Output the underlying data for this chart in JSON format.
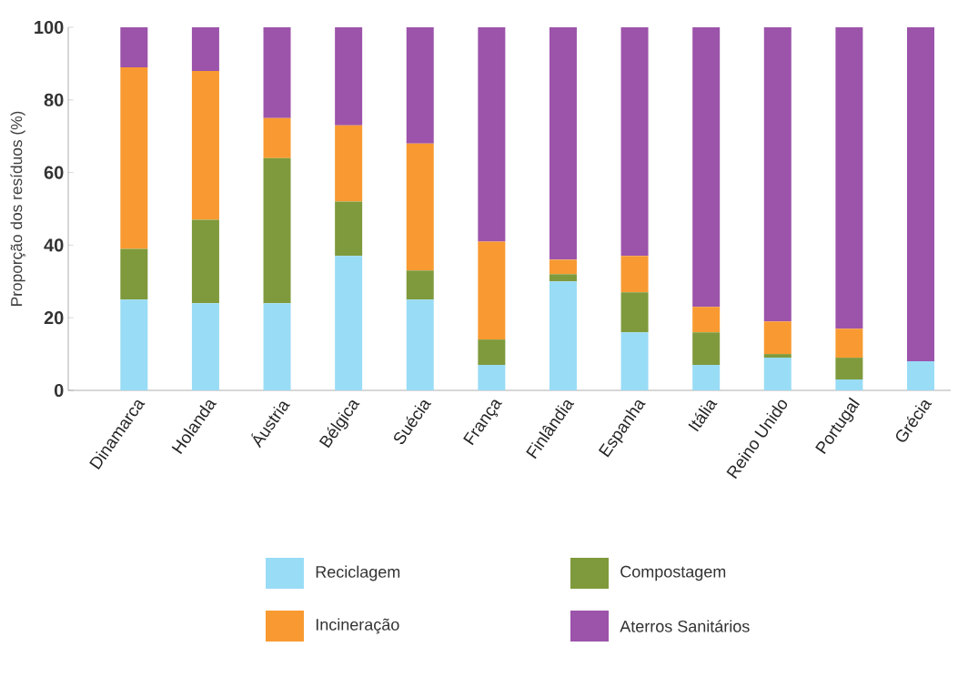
{
  "chart_data": {
    "type": "bar",
    "stacked": true,
    "ylabel": "Proporção dos resíduos (%)",
    "categories": [
      "Dinamarca",
      "Holanda",
      "Áustria",
      "Bélgica",
      "Suécia",
      "França",
      "Finlândia",
      "Espanha",
      "Itália",
      "Reino Unido",
      "Portugal",
      "Grécia"
    ],
    "series": [
      {
        "name": "Reciclagem",
        "color": "#99dcf6",
        "values": [
          25,
          24,
          24,
          37,
          25,
          7,
          30,
          16,
          7,
          9,
          3,
          8
        ]
      },
      {
        "name": "Compostagem",
        "color": "#7f9a3c",
        "values": [
          14,
          23,
          40,
          15,
          8,
          7,
          2,
          11,
          9,
          1,
          6,
          0
        ]
      },
      {
        "name": "Incineração",
        "color": "#f89a31",
        "values": [
          50,
          41,
          11,
          21,
          35,
          27,
          4,
          10,
          7,
          9,
          8,
          0
        ]
      },
      {
        "name": "Aterros Sanitários",
        "color": "#9c53aa",
        "values": [
          11,
          12,
          25,
          27,
          32,
          59,
          64,
          63,
          77,
          81,
          83,
          92
        ]
      }
    ],
    "ylim": [
      0,
      100
    ],
    "yticks": [
      0,
      20,
      40,
      60,
      80,
      100
    ],
    "grid": false,
    "legend": "bottom"
  }
}
